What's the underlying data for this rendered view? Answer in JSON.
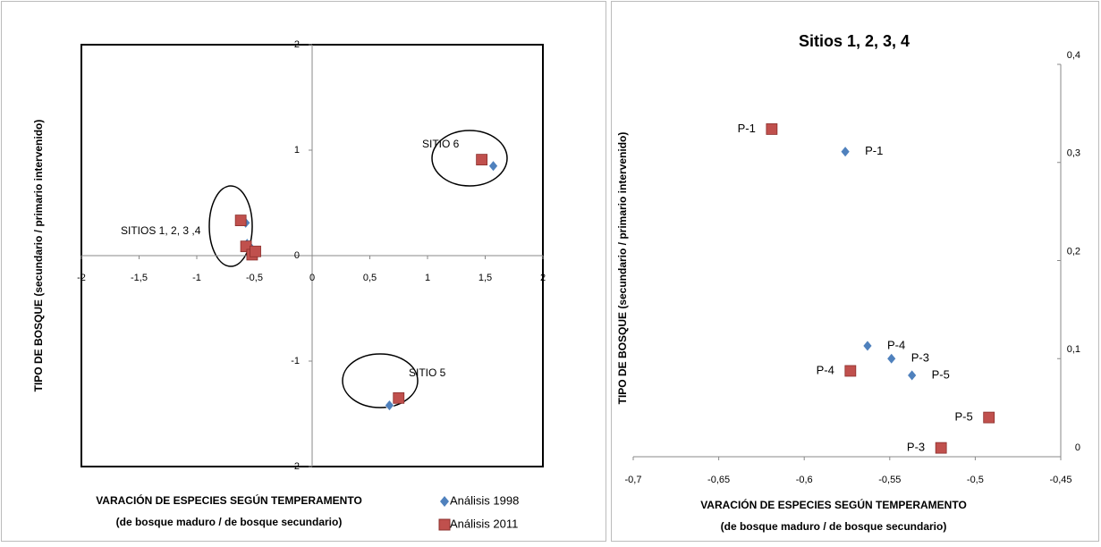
{
  "chart_data": [
    {
      "type": "scatter",
      "xlabel": [
        "VARACIÓN DE ESPECIES SEGÚN TEMPERAMENTO",
        "(de bosque maduro / de bosque secundario)"
      ],
      "ylabel": "TIPO DE BOSQUE (secundario / primario intervenido)",
      "xlim": [
        -2,
        2
      ],
      "ylim": [
        -2,
        2
      ],
      "xticks": [
        -2,
        {
          "value": -1.5,
          "label": "-1,5"
        },
        -1,
        {
          "value": -0.5,
          "label": "-0,5"
        },
        0,
        {
          "value": 0.5,
          "label": "0,5"
        },
        1,
        {
          "value": 1.5,
          "label": "1,5"
        },
        2
      ],
      "yticks": [
        -2,
        -1,
        0,
        1,
        2
      ],
      "legend": "bottom-right",
      "annotations": [
        "SITIOS 1, 2, 3 ,4",
        "SITIO 6",
        "SITIO 5"
      ],
      "series": [
        {
          "name": "Análisis 1998",
          "color": "#4f81bd",
          "marker": "diamond",
          "x": [
            -0.576,
            -0.563,
            -0.549,
            -0.537,
            1.57,
            0.67
          ],
          "values": [
            0.311,
            0.113,
            0.1,
            0.083,
            0.85,
            -1.42
          ]
        },
        {
          "name": "Análisis 2011",
          "color": "#c0504d",
          "marker": "square",
          "x": [
            -0.619,
            -0.573,
            -0.52,
            -0.492,
            1.47,
            0.75
          ],
          "values": [
            0.334,
            0.0875,
            0.009,
            0.04,
            0.91,
            -1.35
          ]
        }
      ]
    },
    {
      "type": "scatter",
      "title": "Sitios 1, 2, 3, 4",
      "xlabel": [
        "VARACIÓN DE ESPECIES SEGÚN TEMPERAMENTO",
        "(de bosque maduro / de bosque secundario)"
      ],
      "ylabel": "TIPO DE BOSQUE (secundario / primario intervenido)",
      "xlim": [
        -0.7,
        -0.45
      ],
      "ylim": [
        0,
        0.4
      ],
      "xticks": [
        {
          "value": -0.7,
          "label": "-0,7"
        },
        {
          "value": -0.65,
          "label": "-0,65"
        },
        {
          "value": -0.6,
          "label": "-0,6"
        },
        {
          "value": -0.55,
          "label": "-0,55"
        },
        {
          "value": -0.5,
          "label": "-0,5"
        },
        {
          "value": -0.45,
          "label": "-0,45"
        }
      ],
      "yticks": [
        0,
        {
          "value": 0.1,
          "label": "0,1"
        },
        {
          "value": 0.2,
          "label": "0,2"
        },
        {
          "value": 0.3,
          "label": "0,3"
        },
        {
          "value": 0.4,
          "label": "0,4"
        }
      ],
      "series": [
        {
          "name": "Análisis 1998",
          "color": "#4f81bd",
          "marker": "diamond",
          "labels": [
            "P-1",
            "P-4",
            "P-3",
            "P-5"
          ],
          "x": [
            -0.576,
            -0.563,
            -0.549,
            -0.537
          ],
          "values": [
            0.311,
            0.113,
            0.1,
            0.083
          ]
        },
        {
          "name": "Análisis 2011",
          "color": "#c0504d",
          "marker": "square",
          "labels": [
            "P-1",
            "P-4",
            "P-3",
            "P-5"
          ],
          "x": [
            -0.619,
            -0.573,
            -0.52,
            -0.492
          ],
          "values": [
            0.334,
            0.0875,
            0.009,
            0.04
          ]
        }
      ]
    }
  ]
}
